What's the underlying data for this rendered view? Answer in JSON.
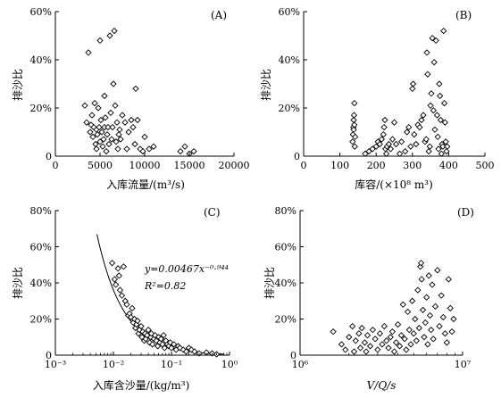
{
  "chart_data": [
    {
      "type": "scatter",
      "panel_label": "(A)",
      "xlabel": "入库流量/(m³/s)",
      "ylabel": "排沙比",
      "xlim": [
        0,
        20000
      ],
      "ylim": [
        0,
        60
      ],
      "x_ticks": [
        "0",
        "5000",
        "10000",
        "15000",
        "20000"
      ],
      "y_ticks": [
        "0",
        "20%",
        "40%",
        "60%"
      ],
      "marker": "open-diamond",
      "points": [
        [
          3300,
          21
        ],
        [
          3500,
          14
        ],
        [
          3700,
          43
        ],
        [
          3900,
          10
        ],
        [
          4000,
          13
        ],
        [
          4100,
          17
        ],
        [
          4200,
          8
        ],
        [
          4300,
          12
        ],
        [
          4400,
          22
        ],
        [
          4500,
          5
        ],
        [
          4600,
          11
        ],
        [
          4600,
          3
        ],
        [
          4700,
          9
        ],
        [
          4800,
          20
        ],
        [
          4900,
          12
        ],
        [
          5000,
          6
        ],
        [
          5000,
          48
        ],
        [
          5100,
          15
        ],
        [
          5200,
          10
        ],
        [
          5300,
          4
        ],
        [
          5400,
          7
        ],
        [
          5500,
          12
        ],
        [
          5500,
          25
        ],
        [
          5600,
          16
        ],
        [
          5700,
          2
        ],
        [
          5800,
          9
        ],
        [
          5900,
          12
        ],
        [
          6000,
          5
        ],
        [
          6100,
          50
        ],
        [
          6200,
          18
        ],
        [
          6300,
          7
        ],
        [
          6400,
          12
        ],
        [
          6500,
          30
        ],
        [
          6600,
          52
        ],
        [
          6700,
          21
        ],
        [
          6800,
          6
        ],
        [
          6900,
          14
        ],
        [
          7000,
          3
        ],
        [
          7100,
          9
        ],
        [
          7200,
          11
        ],
        [
          7300,
          7
        ],
        [
          7500,
          17
        ],
        [
          7800,
          14
        ],
        [
          8000,
          3
        ],
        [
          8200,
          10
        ],
        [
          8500,
          15
        ],
        [
          8700,
          12
        ],
        [
          8900,
          5
        ],
        [
          9000,
          28
        ],
        [
          9200,
          15
        ],
        [
          9500,
          3
        ],
        [
          9800,
          2
        ],
        [
          10000,
          8
        ],
        [
          10500,
          3
        ],
        [
          11000,
          4
        ],
        [
          14000,
          2
        ],
        [
          14500,
          4
        ],
        [
          15000,
          1
        ],
        [
          15500,
          2
        ]
      ]
    },
    {
      "type": "scatter",
      "panel_label": "(B)",
      "xlabel": "库容/(×10⁸ m³)",
      "ylabel": "排沙比",
      "xlim": [
        0,
        500
      ],
      "ylim": [
        0,
        60
      ],
      "x_ticks": [
        "0",
        "100",
        "200",
        "300",
        "400",
        "500"
      ],
      "y_ticks": [
        "0",
        "20%",
        "40%",
        "60%"
      ],
      "marker": "open-diamond",
      "points": [
        [
          135,
          6
        ],
        [
          136,
          9
        ],
        [
          137,
          12
        ],
        [
          138,
          15
        ],
        [
          139,
          17
        ],
        [
          140,
          22
        ],
        [
          141,
          4
        ],
        [
          142,
          8
        ],
        [
          138,
          11
        ],
        [
          140,
          13
        ],
        [
          170,
          1
        ],
        [
          180,
          2
        ],
        [
          190,
          3
        ],
        [
          200,
          4
        ],
        [
          205,
          6
        ],
        [
          210,
          5
        ],
        [
          215,
          7
        ],
        [
          220,
          9
        ],
        [
          222,
          12
        ],
        [
          224,
          15
        ],
        [
          226,
          3
        ],
        [
          228,
          1
        ],
        [
          230,
          4
        ],
        [
          235,
          5
        ],
        [
          240,
          3
        ],
        [
          245,
          7
        ],
        [
          250,
          14
        ],
        [
          255,
          5
        ],
        [
          265,
          1
        ],
        [
          270,
          6
        ],
        [
          280,
          2
        ],
        [
          285,
          10
        ],
        [
          290,
          12
        ],
        [
          295,
          4
        ],
        [
          300,
          28
        ],
        [
          302,
          30
        ],
        [
          305,
          9
        ],
        [
          310,
          5
        ],
        [
          315,
          13
        ],
        [
          320,
          12
        ],
        [
          325,
          15
        ],
        [
          330,
          17
        ],
        [
          335,
          6
        ],
        [
          338,
          7
        ],
        [
          340,
          43
        ],
        [
          342,
          34
        ],
        [
          345,
          2
        ],
        [
          348,
          4
        ],
        [
          350,
          21
        ],
        [
          352,
          26
        ],
        [
          355,
          49
        ],
        [
          358,
          19
        ],
        [
          360,
          39
        ],
        [
          362,
          11
        ],
        [
          365,
          48
        ],
        [
          368,
          17
        ],
        [
          370,
          8
        ],
        [
          372,
          3
        ],
        [
          374,
          30
        ],
        [
          376,
          25
        ],
        [
          378,
          15
        ],
        [
          380,
          1
        ],
        [
          382,
          5
        ],
        [
          384,
          4
        ],
        [
          386,
          52
        ],
        [
          388,
          22
        ],
        [
          390,
          14
        ],
        [
          392,
          6
        ],
        [
          394,
          2
        ],
        [
          396,
          4
        ]
      ]
    },
    {
      "type": "scatter",
      "panel_label": "(C)",
      "xlabel": "入库含沙量/(kg/m³)",
      "ylabel": "排沙比",
      "xscale": "log",
      "xlim": [
        0.001,
        1
      ],
      "ylim": [
        0,
        80
      ],
      "x_ticks": [
        "10⁻³",
        "10⁻²",
        "10⁻¹",
        "10⁰"
      ],
      "y_ticks": [
        "0",
        "20%",
        "40%",
        "60%",
        "80%"
      ],
      "marker": "open-diamond",
      "fit_equation": "y=0.00467x⁻⁰·⁹⁴⁴",
      "fit_r2": "R²=0.82",
      "fit_curve": {
        "coef": 0.00467,
        "exponent": -0.944,
        "x_range": [
          0.0052,
          0.8
        ]
      },
      "points": [
        [
          0.0095,
          51
        ],
        [
          0.0105,
          42
        ],
        [
          0.011,
          39
        ],
        [
          0.012,
          48
        ],
        [
          0.0125,
          44
        ],
        [
          0.013,
          36
        ],
        [
          0.014,
          33
        ],
        [
          0.015,
          49
        ],
        [
          0.016,
          30
        ],
        [
          0.017,
          28
        ],
        [
          0.018,
          22
        ],
        [
          0.019,
          23
        ],
        [
          0.02,
          21
        ],
        [
          0.021,
          26
        ],
        [
          0.022,
          18
        ],
        [
          0.023,
          20
        ],
        [
          0.024,
          15
        ],
        [
          0.025,
          17
        ],
        [
          0.026,
          19
        ],
        [
          0.027,
          12
        ],
        [
          0.028,
          14
        ],
        [
          0.03,
          16
        ],
        [
          0.031,
          10
        ],
        [
          0.032,
          13
        ],
        [
          0.034,
          8
        ],
        [
          0.035,
          12
        ],
        [
          0.036,
          9
        ],
        [
          0.038,
          11
        ],
        [
          0.04,
          14
        ],
        [
          0.042,
          7
        ],
        [
          0.044,
          10
        ],
        [
          0.045,
          12
        ],
        [
          0.047,
          6
        ],
        [
          0.05,
          9
        ],
        [
          0.052,
          11
        ],
        [
          0.055,
          8
        ],
        [
          0.058,
          5
        ],
        [
          0.06,
          10
        ],
        [
          0.063,
          7
        ],
        [
          0.066,
          9
        ],
        [
          0.07,
          6
        ],
        [
          0.073,
          11
        ],
        [
          0.076,
          4
        ],
        [
          0.08,
          8
        ],
        [
          0.085,
          6
        ],
        [
          0.09,
          5
        ],
        [
          0.095,
          7
        ],
        [
          0.1,
          4
        ],
        [
          0.11,
          6
        ],
        [
          0.12,
          3
        ],
        [
          0.13,
          5
        ],
        [
          0.14,
          4
        ],
        [
          0.16,
          3
        ],
        [
          0.18,
          2
        ],
        [
          0.2,
          4
        ],
        [
          0.22,
          3
        ],
        [
          0.25,
          2
        ],
        [
          0.3,
          1
        ],
        [
          0.4,
          1.5
        ],
        [
          0.5,
          1
        ],
        [
          0.6,
          0.5
        ]
      ]
    },
    {
      "type": "scatter",
      "panel_label": "(D)",
      "xlabel": "V/Q/s",
      "ylabel": "排沙比",
      "xscale": "log",
      "xlim": [
        1000000,
        10000000
      ],
      "ylim": [
        0,
        80
      ],
      "x_ticks": [
        "10⁶",
        "10⁷"
      ],
      "y_ticks": [
        "0",
        "20%",
        "40%",
        "60%",
        "80%"
      ],
      "marker": "open-diamond",
      "points": [
        [
          1600000,
          13
        ],
        [
          1800000,
          6
        ],
        [
          1900000,
          3
        ],
        [
          2000000,
          10
        ],
        [
          2100000,
          16
        ],
        [
          2150000,
          2
        ],
        [
          2200000,
          8
        ],
        [
          2300000,
          12
        ],
        [
          2350000,
          4
        ],
        [
          2400000,
          15
        ],
        [
          2500000,
          7
        ],
        [
          2550000,
          2
        ],
        [
          2600000,
          11
        ],
        [
          2700000,
          5
        ],
        [
          2800000,
          14
        ],
        [
          2900000,
          9
        ],
        [
          3000000,
          3
        ],
        [
          3100000,
          12
        ],
        [
          3200000,
          6
        ],
        [
          3300000,
          16
        ],
        [
          3400000,
          8
        ],
        [
          3500000,
          4
        ],
        [
          3600000,
          10
        ],
        [
          3700000,
          13
        ],
        [
          3800000,
          2
        ],
        [
          3900000,
          7
        ],
        [
          4000000,
          17
        ],
        [
          4100000,
          5
        ],
        [
          4200000,
          11
        ],
        [
          4300000,
          28
        ],
        [
          4400000,
          9
        ],
        [
          4500000,
          3
        ],
        [
          4600000,
          24
        ],
        [
          4700000,
          14
        ],
        [
          4800000,
          6
        ],
        [
          4900000,
          30
        ],
        [
          5000000,
          12
        ],
        [
          5100000,
          20
        ],
        [
          5200000,
          8
        ],
        [
          5300000,
          36
        ],
        [
          5400000,
          15
        ],
        [
          5500000,
          49
        ],
        [
          5550000,
          51
        ],
        [
          5600000,
          42
        ],
        [
          5700000,
          25
        ],
        [
          5800000,
          10
        ],
        [
          5900000,
          18
        ],
        [
          6000000,
          32
        ],
        [
          6100000,
          6
        ],
        [
          6200000,
          44
        ],
        [
          6300000,
          22
        ],
        [
          6400000,
          14
        ],
        [
          6500000,
          39
        ],
        [
          6600000,
          9
        ],
        [
          6800000,
          27
        ],
        [
          7000000,
          47
        ],
        [
          7200000,
          16
        ],
        [
          7400000,
          33
        ],
        [
          7600000,
          21
        ],
        [
          7800000,
          12
        ],
        [
          8000000,
          7
        ],
        [
          8200000,
          42
        ],
        [
          8400000,
          26
        ],
        [
          8600000,
          13
        ],
        [
          8800000,
          20
        ]
      ]
    }
  ]
}
